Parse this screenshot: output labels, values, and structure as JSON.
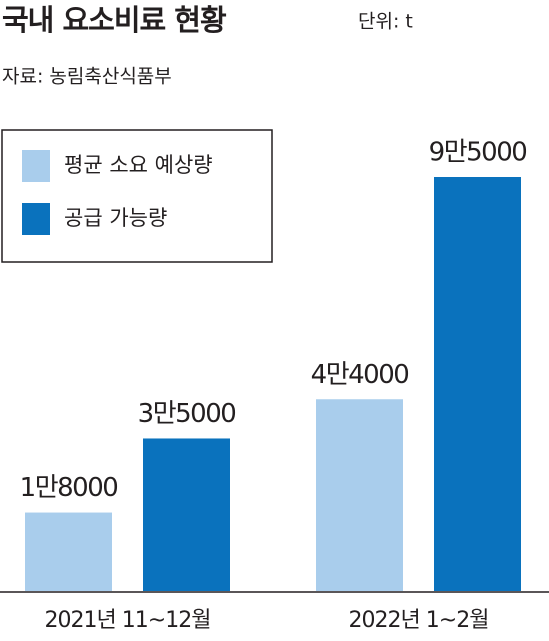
{
  "chart_data": {
    "type": "bar",
    "title": "국내 요소비료 현황",
    "unit": "단위: t",
    "source": "자료: 농림축산식품부",
    "categories": [
      "2021년 11~12월",
      "2022년 1~2월"
    ],
    "series": [
      {
        "name": "평균 소요 예상량",
        "color": "#a9cdec",
        "values": [
          18000,
          44000
        ],
        "value_labels": [
          "1만8000",
          "4만4000"
        ]
      },
      {
        "name": "공급 가능량",
        "color": "#0a72bd",
        "values": [
          35000,
          95000
        ],
        "value_labels": [
          "3만5000",
          "9만5000"
        ]
      }
    ]
  }
}
